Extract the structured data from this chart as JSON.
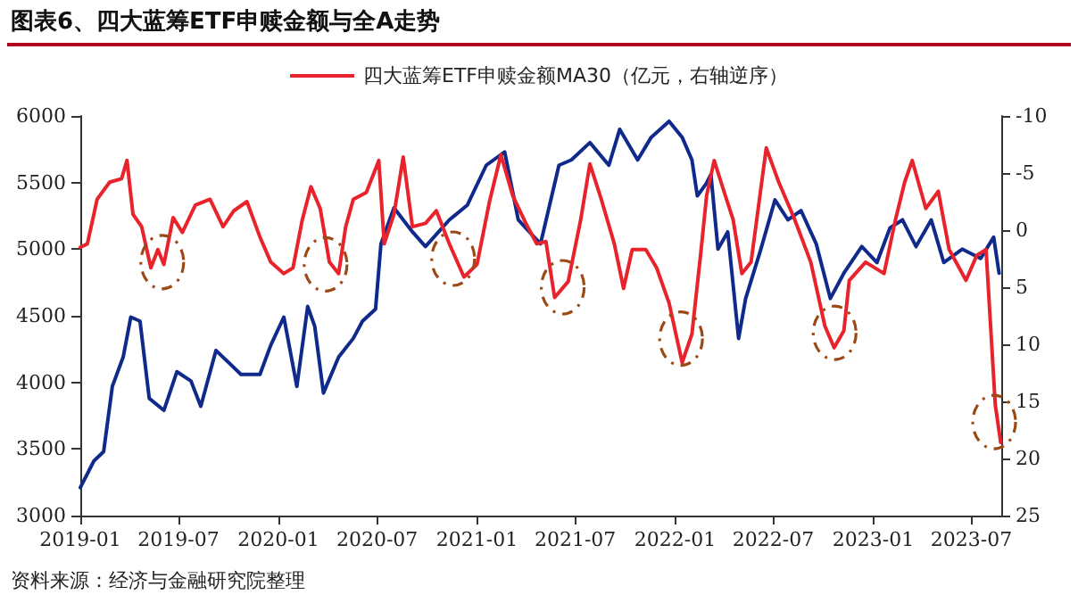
{
  "chart_data": {
    "type": "line",
    "title": "图表6、四大蓝筹ETF申赎金额与全A走势",
    "annotations": [
      "资料来源：经济与金融研究院整理"
    ],
    "series": [
      {
        "color": "#102a8c",
        "x": [
          "2019-01-01",
          "2019-01-26",
          "2019-02-13",
          "2019-03-01",
          "2019-03-21",
          "2019-04-04",
          "2019-04-21",
          "2019-05-08",
          "2019-06-04",
          "2019-06-28",
          "2019-07-24",
          "2019-08-11",
          "2019-09-08",
          "2019-10-24",
          "2019-11-28",
          "2019-12-18",
          "2020-01-11",
          "2020-02-04",
          "2020-02-24",
          "2020-03-08",
          "2020-03-24",
          "2020-04-21",
          "2020-05-18",
          "2020-06-04",
          "2020-06-28",
          "2020-07-08",
          "2020-08-01",
          "2020-09-04",
          "2020-09-28",
          "2020-11-11",
          "2020-12-14",
          "2021-01-18",
          "2021-02-21",
          "2021-03-18",
          "2021-04-28",
          "2021-06-01",
          "2021-06-24",
          "2021-07-28",
          "2021-09-01",
          "2021-09-21",
          "2021-10-24",
          "2021-11-18",
          "2021-12-21",
          "2022-01-14",
          "2022-02-01",
          "2022-02-11",
          "2022-02-27",
          "2022-03-08",
          "2022-03-21",
          "2022-04-08",
          "2022-04-28",
          "2022-05-11",
          "2022-06-08",
          "2022-07-04",
          "2022-07-28",
          "2022-08-21",
          "2022-09-18",
          "2022-10-14",
          "2022-11-08",
          "2022-12-11",
          "2023-01-08",
          "2023-02-01",
          "2023-02-24",
          "2023-03-21",
          "2023-04-18",
          "2023-05-11",
          "2023-06-14",
          "2023-07-18",
          "2023-08-11",
          "2023-08-21"
        ],
        "values": [
          3210,
          3410,
          3480,
          3970,
          4190,
          4490,
          4460,
          3880,
          3790,
          4080,
          4010,
          3820,
          4240,
          4060,
          4060,
          4280,
          4490,
          3970,
          4570,
          4420,
          3920,
          4190,
          4330,
          4460,
          4550,
          5040,
          5310,
          5130,
          5020,
          5220,
          5330,
          5630,
          5730,
          5220,
          5040,
          5630,
          5670,
          5800,
          5630,
          5900,
          5670,
          5840,
          5960,
          5840,
          5670,
          5400,
          5490,
          5560,
          5000,
          5130,
          4330,
          4630,
          5000,
          5370,
          5220,
          5290,
          5040,
          4630,
          4820,
          5020,
          4900,
          5160,
          5220,
          5020,
          5220,
          4900,
          5000,
          4930,
          5090,
          4820
        ]
      },
      {
        "name": "四大蓝筹ETF申赎金额MA30（亿元，右轴逆序）",
        "color": "#e8232b",
        "axis": "y2",
        "x": [
          "2019-01-01",
          "2019-01-14",
          "2019-02-01",
          "2019-02-24",
          "2019-03-18",
          "2019-03-28",
          "2019-04-08",
          "2019-04-24",
          "2019-05-11",
          "2019-05-24",
          "2019-06-04",
          "2019-06-21",
          "2019-07-08",
          "2019-08-01",
          "2019-08-28",
          "2019-09-21",
          "2019-10-11",
          "2019-11-04",
          "2019-11-28",
          "2019-12-18",
          "2020-01-11",
          "2020-01-28",
          "2020-02-14",
          "2020-03-01",
          "2020-03-18",
          "2020-04-04",
          "2020-04-21",
          "2020-05-04",
          "2020-05-18",
          "2020-06-11",
          "2020-07-04",
          "2020-07-14",
          "2020-08-01",
          "2020-08-18",
          "2020-09-04",
          "2020-09-28",
          "2020-10-18",
          "2020-11-11",
          "2020-12-08",
          "2021-01-01",
          "2021-01-24",
          "2021-02-14",
          "2021-03-08",
          "2021-04-01",
          "2021-04-21",
          "2021-05-08",
          "2021-05-24",
          "2021-06-18",
          "2021-07-11",
          "2021-07-28",
          "2021-08-18",
          "2021-09-11",
          "2021-09-28",
          "2021-10-14",
          "2021-11-08",
          "2021-11-28",
          "2021-12-21",
          "2022-01-14",
          "2022-02-01",
          "2022-02-18",
          "2022-02-28",
          "2022-03-14",
          "2022-04-01",
          "2022-04-18",
          "2022-05-04",
          "2022-05-21",
          "2022-06-18",
          "2022-07-11",
          "2022-08-08",
          "2022-09-08",
          "2022-10-04",
          "2022-10-21",
          "2022-11-08",
          "2022-11-18",
          "2022-12-18",
          "2023-01-21",
          "2023-02-11",
          "2023-02-28",
          "2023-03-14",
          "2023-04-08",
          "2023-05-01",
          "2023-05-21",
          "2023-06-21",
          "2023-07-11",
          "2023-07-28",
          "2023-08-14",
          "2023-08-24"
        ],
        "values": [
          1.5,
          1.2,
          -2.7,
          -4.2,
          -4.5,
          -6.1,
          -1.4,
          -0.3,
          3.3,
          1.7,
          3.0,
          -1.1,
          0.2,
          -2.2,
          -2.7,
          -0.3,
          -1.7,
          -2.5,
          0.6,
          2.8,
          3.8,
          3.3,
          -0.9,
          -3.8,
          -1.9,
          2.8,
          3.8,
          -0.3,
          -2.7,
          -3.3,
          -6.1,
          1.2,
          -1.4,
          -6.4,
          -0.3,
          -0.6,
          -1.7,
          1.2,
          4.1,
          3.0,
          -2.5,
          -6.6,
          -3.0,
          -0.6,
          1.2,
          1.0,
          5.9,
          4.5,
          -0.9,
          -5.8,
          -2.7,
          1.2,
          5.1,
          1.7,
          1.7,
          3.3,
          6.4,
          11.6,
          9.1,
          1.7,
          -3.0,
          -6.1,
          -3.4,
          -0.9,
          3.8,
          2.8,
          -7.2,
          -4.2,
          -1.1,
          2.8,
          8.4,
          10.3,
          8.8,
          4.4,
          2.8,
          3.8,
          -0.9,
          -4.2,
          -6.1,
          -1.9,
          -3.4,
          1.7,
          4.4,
          2.2,
          1.7,
          15.3,
          18.6
        ]
      }
    ],
    "xlim": [
      "2019-01-01",
      "2023-08-25"
    ],
    "xticks": [
      "2019-01",
      "2019-07",
      "2020-01",
      "2020-07",
      "2021-01",
      "2021-07",
      "2022-01",
      "2022-07",
      "2023-01",
      "2023-07"
    ],
    "ylim": [
      3000,
      6000
    ],
    "yticks": [
      3000,
      3500,
      4000,
      4500,
      5000,
      5500,
      6000
    ],
    "y2lim": [
      25,
      -10
    ],
    "y2ticks": [
      -10,
      -5,
      0,
      5,
      10,
      15,
      20,
      25
    ],
    "legend": "top",
    "marker": "none",
    "line_style": "solid",
    "grid": false
  }
}
